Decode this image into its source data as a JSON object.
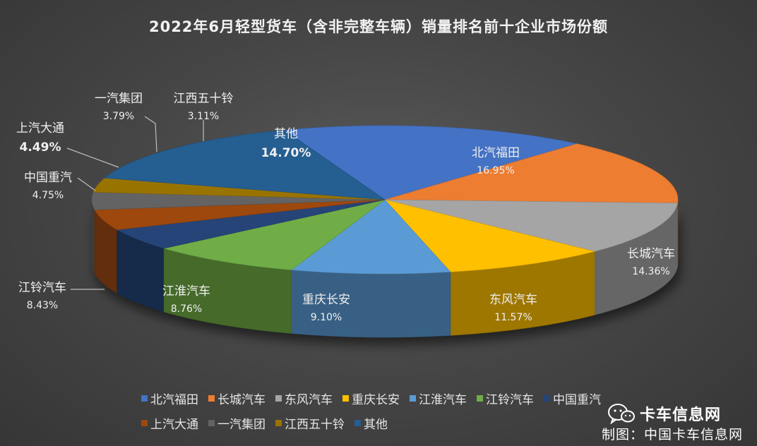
{
  "chart_data": {
    "type": "pie",
    "title": "2022年6月轻型货车（含非完整车辆）销量排名前十企业市场份额",
    "slices": [
      {
        "label": "北汽福田",
        "value": 16.95,
        "display": "16.95%",
        "color": "#4472C4"
      },
      {
        "label": "长城汽车",
        "value": 14.36,
        "display": "14.36%",
        "color": "#ED7D31"
      },
      {
        "label": "东风汽车",
        "value": 11.57,
        "display": "11.57%",
        "color": "#A5A5A5"
      },
      {
        "label": "重庆长安",
        "value": 9.1,
        "display": "9.10%",
        "color": "#FFC000"
      },
      {
        "label": "江淮汽车",
        "value": 8.76,
        "display": "8.76%",
        "color": "#5B9BD5"
      },
      {
        "label": "江铃汽车",
        "value": 8.43,
        "display": "8.43%",
        "color": "#70AD47"
      },
      {
        "label": "中国重汽",
        "value": 4.75,
        "display": "4.75%",
        "color": "#264478"
      },
      {
        "label": "上汽大通",
        "value": 4.49,
        "display": "4.49%",
        "color": "#9E480E"
      },
      {
        "label": "一汽集团",
        "value": 3.79,
        "display": "3.79%",
        "color": "#636363"
      },
      {
        "label": "江西五十铃",
        "value": 3.11,
        "display": "3.11%",
        "color": "#997300"
      },
      {
        "label": "其他",
        "value": 14.7,
        "display": "14.70%",
        "color": "#255E91"
      }
    ],
    "legend_position": "bottom"
  },
  "legend": [
    "北汽福田",
    "长城汽车",
    "东风汽车",
    "重庆长安",
    "江淮汽车",
    "江铃汽车",
    "中国重汽",
    "上汽大通",
    "一汽集团",
    "江西五十铃",
    "其他"
  ],
  "watermark": {
    "brand": "卡车信息网",
    "icon": "wechat-icon"
  },
  "credit": "制图：中国卡车信息网"
}
